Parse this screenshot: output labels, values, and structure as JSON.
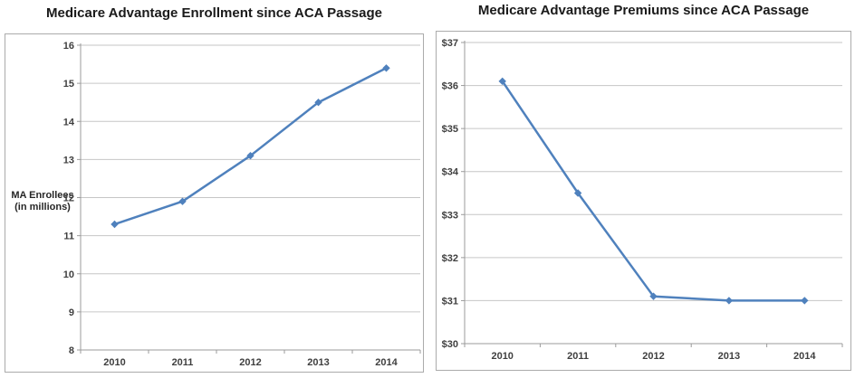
{
  "chart_data": [
    {
      "type": "line",
      "title": "Medicare Advantage Enrollment since ACA Passage",
      "ylabel_line1": "MA Enrollees",
      "ylabel_line2": "(in millions)",
      "categories": [
        "2010",
        "2011",
        "2012",
        "2013",
        "2014"
      ],
      "values": [
        11.3,
        11.9,
        13.1,
        14.5,
        15.4
      ],
      "ylim": [
        8,
        16
      ],
      "ytick_interval": 1,
      "ytick_labels": [
        "8",
        "9",
        "10",
        "11",
        "12",
        "13",
        "14",
        "15",
        "16"
      ],
      "legend": "none",
      "grid": "horizontal",
      "marker": "diamond",
      "line_color": "#4F81BD"
    },
    {
      "type": "line",
      "title": "Medicare Advantage Premiums since ACA Passage",
      "categories": [
        "2010",
        "2011",
        "2012",
        "2013",
        "2014"
      ],
      "values": [
        36.1,
        33.5,
        31.1,
        31.0,
        31.0
      ],
      "ylim": [
        30,
        37
      ],
      "ytick_interval": 1,
      "ytick_labels": [
        "$30",
        "$31",
        "$32",
        "$33",
        "$34",
        "$35",
        "$36",
        "$37"
      ],
      "legend": "none",
      "grid": "horizontal",
      "marker": "diamond",
      "line_color": "#4F81BD"
    }
  ],
  "colors": {
    "line": "#4F81BD",
    "gridline": "#C6C6C6",
    "axis_line": "#9B9B9B",
    "tick_label": "#3F3F3F",
    "title": "#1A1A1A",
    "panel_border": "#ABABAB",
    "background": "#FFFFFF"
  }
}
